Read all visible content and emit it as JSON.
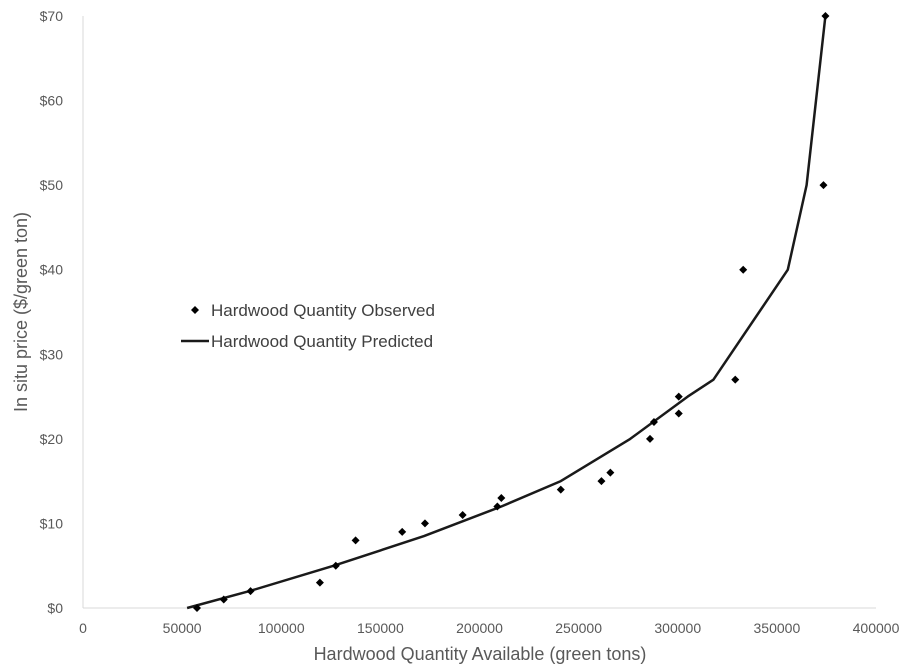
{
  "chart_data": {
    "type": "scatter",
    "title": "",
    "xlabel": "Hardwood Quantity Available (green tons)",
    "ylabel": "In situ price ($/green ton)",
    "xlim": [
      0,
      400000
    ],
    "ylim": [
      0,
      70
    ],
    "x_ticks": [
      0,
      50000,
      100000,
      150000,
      200000,
      250000,
      300000,
      350000,
      400000
    ],
    "x_tick_labels": [
      "0",
      "50000",
      "100000",
      "150000",
      "200000",
      "250000",
      "300000",
      "350000",
      "400000"
    ],
    "y_ticks": [
      0,
      10,
      20,
      30,
      40,
      50,
      60,
      70
    ],
    "y_tick_labels": [
      "$0",
      "$10",
      "$20",
      "$30",
      "$40",
      "$50",
      "$60",
      "$70"
    ],
    "grid": false,
    "legend_position": "left-middle",
    "series": [
      {
        "name": "Hardwood Quantity Observed",
        "kind": "scatter",
        "marker": "diamond",
        "color": "#000000",
        "points": [
          [
            57500,
            0
          ],
          [
            71000,
            1
          ],
          [
            84500,
            2
          ],
          [
            119500,
            3
          ],
          [
            127500,
            5
          ],
          [
            137500,
            8
          ],
          [
            161000,
            9
          ],
          [
            172500,
            10
          ],
          [
            191500,
            11
          ],
          [
            209000,
            12
          ],
          [
            211000,
            13
          ],
          [
            241000,
            14
          ],
          [
            261500,
            15
          ],
          [
            266000,
            16
          ],
          [
            286000,
            20
          ],
          [
            288000,
            22
          ],
          [
            300500,
            25
          ],
          [
            300500,
            23
          ],
          [
            329000,
            27
          ],
          [
            333000,
            40
          ],
          [
            373500,
            50
          ],
          [
            374500,
            70
          ]
        ]
      },
      {
        "name": "Hardwood Quantity Predicted",
        "kind": "line",
        "color": "#1a1a1a",
        "points": [
          [
            52500,
            0
          ],
          [
            84000,
            2
          ],
          [
            126500,
            5
          ],
          [
            172000,
            8.5
          ],
          [
            211000,
            12
          ],
          [
            241000,
            15
          ],
          [
            276000,
            20
          ],
          [
            305000,
            25
          ],
          [
            318000,
            27
          ],
          [
            355500,
            40
          ],
          [
            365000,
            50
          ],
          [
            374500,
            70
          ]
        ]
      }
    ]
  }
}
